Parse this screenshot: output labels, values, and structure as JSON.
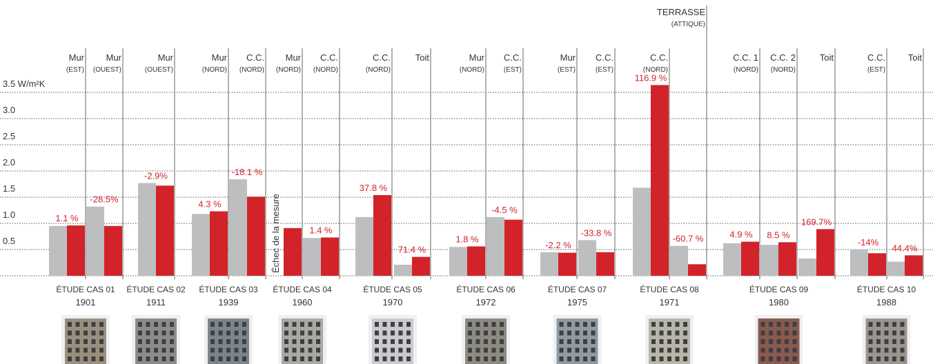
{
  "chart_data": {
    "type": "bar",
    "ylim": [
      0,
      3.5
    ],
    "yticks": [
      0.5,
      {
        "value": 1.0,
        "label": "1.0"
      },
      1.5,
      {
        "value": 2.0,
        "label": "2.0"
      },
      2.5,
      {
        "value": 3.0,
        "label": "3.0"
      },
      {
        "value": 3.5,
        "label": "3.5 W/m²K"
      }
    ],
    "grid": true,
    "colors": [
      "#bdbec0",
      "#d2232a"
    ],
    "cases": [
      {
        "label": "ÉTUDE CAS 01",
        "year": "1901",
        "columns": [
          {
            "name": "Mur",
            "sub": "(EST)",
            "before": 0.95,
            "after": 0.96,
            "change": "1.1 %"
          },
          {
            "name": "Mur",
            "sub": "(OUEST)",
            "before": 1.32,
            "after": 0.95,
            "change": "-28.5%"
          }
        ]
      },
      {
        "label": "ÉTUDE CAS 02",
        "year": "1911",
        "columns": [
          {
            "name": "Mur",
            "sub": "(OUEST)",
            "before": 1.77,
            "after": 1.72,
            "change": "-2.9%"
          }
        ]
      },
      {
        "label": "ÉTUDE CAS 03",
        "year": "1939",
        "columns": [
          {
            "name": "Mur",
            "sub": "(NORD)",
            "before": 1.18,
            "after": 1.23,
            "change": "4.3 %"
          },
          {
            "name": "C.C.",
            "sub": "(NORD)",
            "before": 1.84,
            "after": 1.51,
            "change": "-18.1 %"
          }
        ]
      },
      {
        "label": "ÉTUDE CAS 04",
        "year": "1960",
        "columns": [
          {
            "name": "Mur",
            "sub": "(NORD)",
            "before": null,
            "after": 0.91,
            "note": "Échec de la mesure"
          },
          {
            "name": "C.C.",
            "sub": "(NORD)",
            "before": 0.72,
            "after": 0.73,
            "change": "1.4 %"
          }
        ]
      },
      {
        "label": "ÉTUDE CAS 05",
        "year": "1970",
        "columns": [
          {
            "name": "C.C.",
            "sub": "(NORD)",
            "before": 1.12,
            "after": 1.54,
            "change": "37.8 %"
          },
          {
            "name": "Toit",
            "before": 0.21,
            "after": 0.36,
            "change": "71.4 %"
          }
        ]
      },
      {
        "label": "ÉTUDE CAS 06",
        "year": "1972",
        "columns": [
          {
            "name": "Mur",
            "sub": "(NORD)",
            "before": 0.55,
            "after": 0.56,
            "change": "1.8 %"
          },
          {
            "name": "C.C.",
            "sub": "(EST)",
            "before": 1.12,
            "after": 1.07,
            "change": "-4.5 %"
          }
        ]
      },
      {
        "label": "ÉTUDE CAS 07",
        "year": "1975",
        "columns": [
          {
            "name": "Mur",
            "sub": "(EST)",
            "before": 0.45,
            "after": 0.44,
            "change": "-2.2 %"
          },
          {
            "name": "C.C.",
            "sub": "(EST)",
            "before": 0.68,
            "after": 0.45,
            "change": "-33.8 %"
          }
        ]
      },
      {
        "label": "ÉTUDE CAS 08",
        "year": "1971",
        "columns": [
          {
            "name": "C.C.",
            "sub": "(NORD)",
            "before": 1.68,
            "after": 3.64,
            "change": "116.9 %"
          },
          {
            "name": "TERRASSE",
            "sub": "(ATTIQUE)",
            "before": 0.57,
            "after": 0.22,
            "change": "-60.7 %"
          }
        ]
      },
      {
        "label": "ÉTUDE CAS 09",
        "year": "1980",
        "columns": [
          {
            "name": "C.C. 1",
            "sub": "(NORD)",
            "before": 0.62,
            "after": 0.65,
            "change": "4.9 %"
          },
          {
            "name": "C.C. 2",
            "sub": "(NORD)",
            "before": 0.59,
            "after": 0.64,
            "change": "8.5 %"
          },
          {
            "name": "Toit",
            "before": 0.33,
            "after": 0.89,
            "change": "169.7%"
          }
        ]
      },
      {
        "label": "ÉTUDE CAS 10",
        "year": "1988",
        "columns": [
          {
            "name": "C.C.",
            "sub": "(EST)",
            "before": 0.5,
            "after": 0.43,
            "change": "-14%"
          },
          {
            "name": "Toit",
            "before": 0.27,
            "after": 0.39,
            "change": "44.4%"
          }
        ]
      }
    ]
  }
}
